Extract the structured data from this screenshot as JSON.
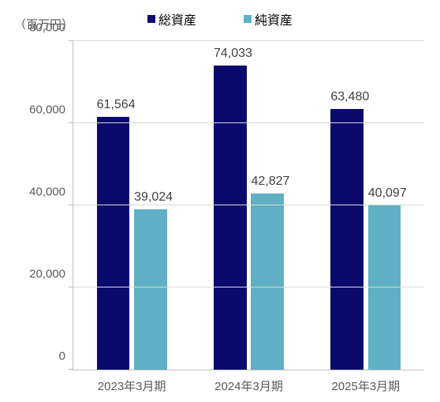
{
  "chart": {
    "type": "bar",
    "y_unit_label": "（百万円）",
    "legend": [
      {
        "label": "総資産",
        "color": "#0a0a6c"
      },
      {
        "label": "純資産",
        "color": "#5fb0c4"
      }
    ],
    "y_axis": {
      "min": 0,
      "max": 80000,
      "tick_step": 20000,
      "tick_labels": [
        "0",
        "20,000",
        "40,000",
        "60,000",
        "80,000"
      ],
      "label_fontsize": 15,
      "label_color": "#595959",
      "grid_color": "#d9d9d9",
      "axis_color": "#bfbfbf"
    },
    "categories": [
      "2023年3月期",
      "2024年3月期",
      "2025年3月期"
    ],
    "series": [
      {
        "name": "総資産",
        "color": "#0a0a6c",
        "values": [
          61564,
          74033,
          63480
        ],
        "value_labels": [
          "61,564",
          "74,033",
          "63,480"
        ]
      },
      {
        "name": "純資産",
        "color": "#5fb0c4",
        "values": [
          39024,
          42827,
          40097
        ],
        "value_labels": [
          "39,024",
          "42,827",
          "40,097"
        ]
      }
    ],
    "bar_width_pct": 28,
    "bar_gap_pct": 4,
    "background_color": "#ffffff",
    "data_label_fontsize": 16,
    "data_label_color": "#404040"
  }
}
